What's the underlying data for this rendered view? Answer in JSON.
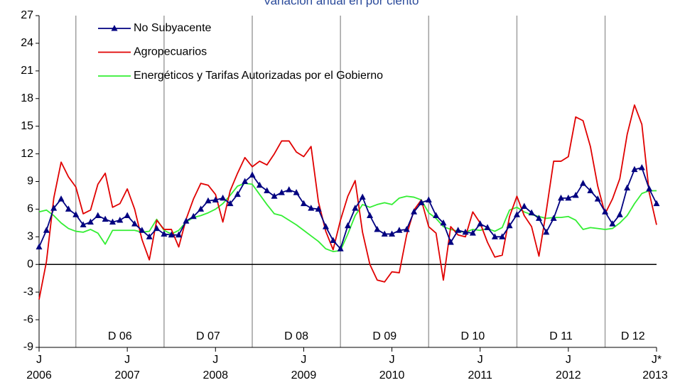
{
  "chart_data": {
    "type": "line",
    "title": "Variación anual en por ciento",
    "categories": [
      "J",
      null,
      null,
      null,
      null,
      null,
      null,
      null,
      null,
      null,
      null,
      null,
      "J",
      null,
      null,
      null,
      null,
      null,
      null,
      null,
      null,
      null,
      null,
      null,
      "J",
      null,
      null,
      null,
      null,
      null,
      null,
      null,
      null,
      null,
      null,
      null,
      "J",
      null,
      null,
      null,
      null,
      null,
      null,
      null,
      null,
      null,
      null,
      null,
      "J",
      null,
      null,
      null,
      null,
      null,
      null,
      null,
      null,
      null,
      null,
      null,
      "J",
      null,
      null,
      null,
      null,
      null,
      null,
      null,
      null,
      null,
      null,
      null,
      "J",
      null,
      null,
      null,
      null,
      null,
      null,
      null,
      null,
      null,
      null,
      null,
      "J*"
    ],
    "years": [
      "2006",
      "2007",
      "2008",
      "2009",
      "2010",
      "2011",
      "2012",
      "2013"
    ],
    "periods": [
      {
        "label": "D 06",
        "start": 5,
        "end": 17
      },
      {
        "label": "D 07",
        "start": 17,
        "end": 29
      },
      {
        "label": "D 08",
        "start": 29,
        "end": 41
      },
      {
        "label": "D 09",
        "start": 41,
        "end": 53
      },
      {
        "label": "D 10",
        "start": 53,
        "end": 65
      },
      {
        "label": "D 11",
        "start": 65,
        "end": 77
      },
      {
        "label": "D 12",
        "start": 77,
        "end": 84
      }
    ],
    "series": [
      {
        "name": "No Subyacente",
        "color": "#000080",
        "marker": "triangle",
        "values": [
          1.9,
          3.7,
          6.1,
          7.1,
          6.0,
          5.4,
          4.3,
          4.6,
          5.3,
          4.9,
          4.6,
          4.8,
          5.3,
          4.4,
          3.7,
          3.0,
          3.9,
          3.3,
          3.2,
          3.2,
          4.7,
          5.2,
          6.0,
          6.9,
          7.0,
          7.2,
          6.6,
          7.6,
          9.0,
          9.7,
          8.6,
          8.0,
          7.4,
          7.8,
          8.1,
          7.8,
          6.6,
          6.1,
          6.0,
          4.1,
          2.6,
          1.7,
          4.2,
          6.1,
          7.3,
          5.3,
          3.8,
          3.3,
          3.3,
          3.7,
          3.8,
          5.7,
          6.7,
          7.0,
          5.3,
          4.5,
          2.4,
          3.7,
          3.5,
          3.4,
          4.4,
          4.0,
          3.0,
          3.0,
          4.2,
          5.4,
          6.3,
          5.6,
          5.0,
          3.5,
          5.0,
          7.2,
          7.2,
          7.5,
          8.8,
          8.0,
          7.1,
          5.7,
          4.4,
          5.4,
          8.3,
          10.3,
          10.5,
          8.2,
          6.6
        ]
      },
      {
        "name": "Agropecuarios",
        "color": "#e00000",
        "values": [
          -3.8,
          0.3,
          7.2,
          11.1,
          9.5,
          8.4,
          5.5,
          5.9,
          8.7,
          9.9,
          6.2,
          6.6,
          8.2,
          6.0,
          2.7,
          0.5,
          4.8,
          3.8,
          3.8,
          1.9,
          4.9,
          7.1,
          8.8,
          8.6,
          7.6,
          4.6,
          8.0,
          9.9,
          11.6,
          10.6,
          11.2,
          10.8,
          12.0,
          13.4,
          13.4,
          12.2,
          11.7,
          12.8,
          6.8,
          3.6,
          1.6,
          4.8,
          7.4,
          9.1,
          3.5,
          0.0,
          -1.7,
          -1.9,
          -0.8,
          -0.9,
          3.2,
          5.9,
          7.0,
          4.1,
          3.4,
          -1.7,
          4.1,
          3.2,
          3.0,
          5.7,
          4.5,
          2.4,
          0.8,
          1.0,
          5.2,
          7.4,
          5.3,
          4.1,
          0.9,
          5.8,
          11.2,
          11.2,
          11.7,
          16.0,
          15.6,
          12.8,
          8.5,
          5.5,
          7.1,
          9.3,
          14.1,
          17.3,
          15.2,
          7.8,
          4.3
        ]
      },
      {
        "name": "Energéticos y Tarifas Autorizadas por el Gobierno",
        "color": "#33ee33",
        "values": [
          5.7,
          5.9,
          5.3,
          4.5,
          3.9,
          3.6,
          3.5,
          3.8,
          3.4,
          2.2,
          3.7,
          3.7,
          3.7,
          3.7,
          3.5,
          3.6,
          4.9,
          3.7,
          3.3,
          3.7,
          4.6,
          5.1,
          5.3,
          5.6,
          6.0,
          6.6,
          7.5,
          8.5,
          8.8,
          8.7,
          7.6,
          6.5,
          5.5,
          5.3,
          4.8,
          4.3,
          3.7,
          3.1,
          2.5,
          1.7,
          1.4,
          1.5,
          3.3,
          5.3,
          6.5,
          6.2,
          6.5,
          6.7,
          6.5,
          7.2,
          7.4,
          7.3,
          7.0,
          5.6,
          5.0,
          4.1,
          3.8,
          3.6,
          3.5,
          3.8,
          3.7,
          3.9,
          3.6,
          4.0,
          5.9,
          6.2,
          5.7,
          5.4,
          5.2,
          5.0,
          5.1,
          5.1,
          5.2,
          4.8,
          3.8,
          4.0,
          3.9,
          3.8,
          3.9,
          4.5,
          5.3,
          6.6,
          7.7,
          8.0,
          8.0
        ]
      }
    ],
    "ylim": [
      -9,
      27
    ],
    "yticks": [
      -9,
      -6,
      -3,
      0,
      3,
      6,
      9,
      12,
      15,
      18,
      21,
      24,
      27
    ],
    "zero_line": true,
    "grid": false,
    "separator_color": "#a0a0a0"
  }
}
